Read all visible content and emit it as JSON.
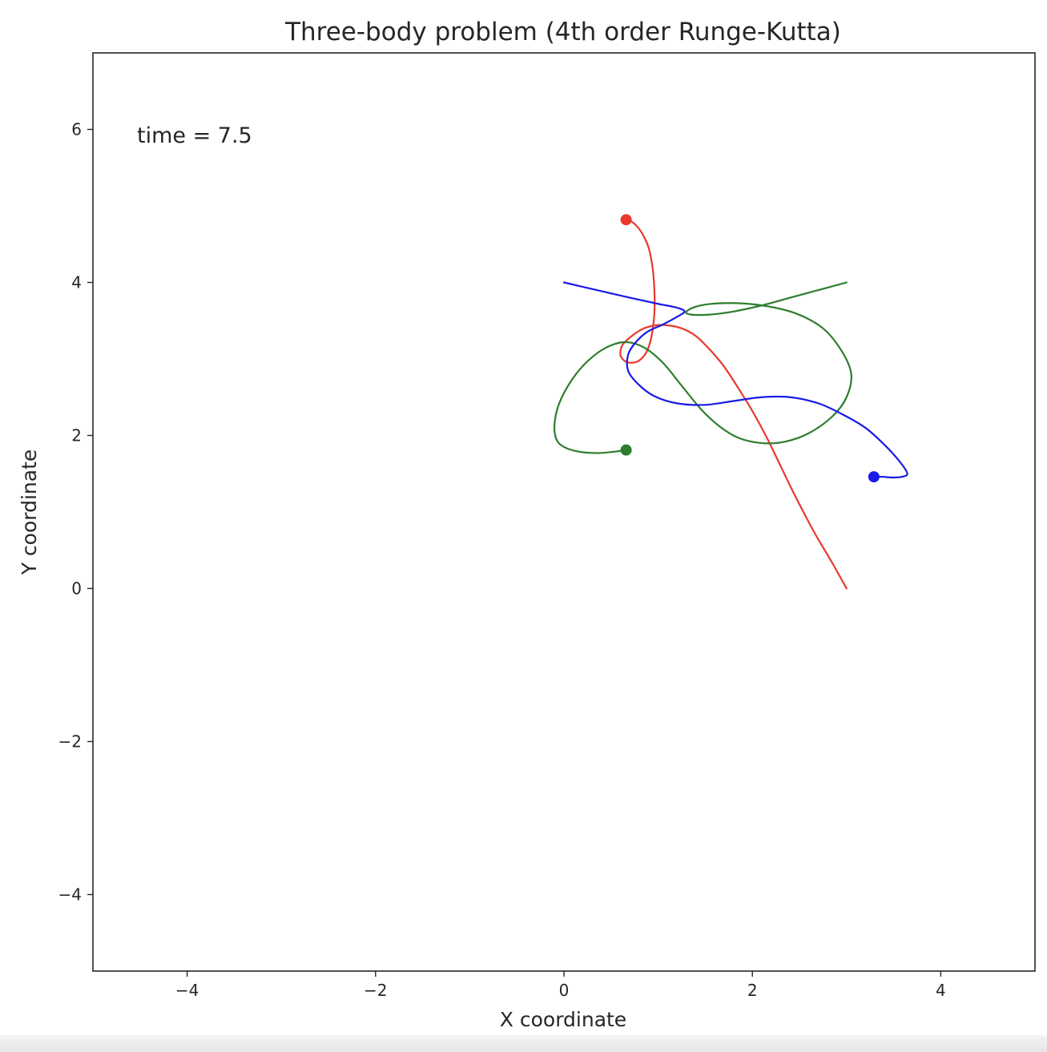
{
  "chart_data": {
    "type": "line",
    "title": "Three-body problem (4th order Runge-Kutta)",
    "xlabel": "X coordinate",
    "ylabel": "Y coordinate",
    "xlim": [
      -5,
      5
    ],
    "ylim": [
      -5,
      7
    ],
    "xticks": [
      -4,
      -2,
      0,
      2,
      4
    ],
    "yticks": [
      -4,
      -2,
      0,
      2,
      4,
      6
    ],
    "xtick_labels": [
      "−4",
      "−2",
      "0",
      "2",
      "4"
    ],
    "ytick_labels": [
      "−4",
      "−2",
      "0",
      "2",
      "4",
      "6"
    ],
    "grid": false,
    "annotation": "time = 7.5",
    "series": [
      {
        "color": "#e8392b",
        "x": [
          3.0,
          2.85,
          2.65,
          2.45,
          2.3,
          2.15,
          2.0,
          1.85,
          1.7,
          1.55,
          1.4,
          1.25,
          1.1,
          0.98,
          0.85,
          0.72,
          0.62,
          0.6,
          0.65,
          0.72,
          0.8,
          0.88,
          0.93,
          0.96,
          0.96,
          0.94,
          0.9,
          0.84,
          0.77,
          0.71,
          0.66
        ],
        "y": [
          0.0,
          0.33,
          0.75,
          1.22,
          1.6,
          1.98,
          2.32,
          2.62,
          2.9,
          3.12,
          3.3,
          3.4,
          3.44,
          3.44,
          3.4,
          3.3,
          3.18,
          3.05,
          2.97,
          2.95,
          2.98,
          3.1,
          3.3,
          3.6,
          3.9,
          4.2,
          4.45,
          4.62,
          4.74,
          4.8,
          4.82
        ]
      },
      {
        "color": "#2e7d2e",
        "x": [
          3.0,
          2.7,
          2.4,
          2.1,
          1.8,
          1.55,
          1.35,
          1.3,
          1.45,
          1.75,
          2.1,
          2.45,
          2.75,
          2.95,
          3.05,
          3.0,
          2.85,
          2.6,
          2.35,
          2.1,
          1.85,
          1.65,
          1.45,
          1.25,
          1.05,
          0.85,
          0.65,
          0.45,
          0.25,
          0.08,
          -0.05,
          -0.1,
          -0.08,
          0.0,
          0.15,
          0.35,
          0.55,
          0.66
        ],
        "y": [
          4.0,
          3.9,
          3.8,
          3.7,
          3.62,
          3.58,
          3.58,
          3.62,
          3.7,
          3.73,
          3.7,
          3.6,
          3.4,
          3.1,
          2.8,
          2.5,
          2.25,
          2.03,
          1.92,
          1.9,
          1.97,
          2.12,
          2.35,
          2.65,
          2.95,
          3.15,
          3.22,
          3.15,
          2.97,
          2.72,
          2.42,
          2.15,
          1.95,
          1.85,
          1.79,
          1.77,
          1.79,
          1.81
        ]
      },
      {
        "color": "#1a1ae6",
        "x": [
          0.0,
          0.35,
          0.7,
          1.0,
          1.2,
          1.28,
          1.2,
          1.05,
          0.88,
          0.75,
          0.68,
          0.68,
          0.78,
          0.95,
          1.2,
          1.5,
          1.8,
          2.1,
          2.4,
          2.7,
          2.95,
          3.2,
          3.4,
          3.55,
          3.64,
          3.62,
          3.5,
          3.38,
          3.29
        ],
        "y": [
          4.0,
          3.9,
          3.8,
          3.72,
          3.67,
          3.62,
          3.55,
          3.45,
          3.35,
          3.2,
          3.05,
          2.85,
          2.68,
          2.52,
          2.42,
          2.4,
          2.45,
          2.5,
          2.5,
          2.42,
          2.28,
          2.1,
          1.88,
          1.68,
          1.52,
          1.47,
          1.45,
          1.46,
          1.46
        ]
      }
    ],
    "markers": [
      {
        "x": 0.66,
        "y": 4.82,
        "color": "#e8392b"
      },
      {
        "x": 0.66,
        "y": 1.81,
        "color": "#2e7d2e"
      },
      {
        "x": 3.29,
        "y": 1.46,
        "color": "#1a1ae6"
      }
    ]
  }
}
